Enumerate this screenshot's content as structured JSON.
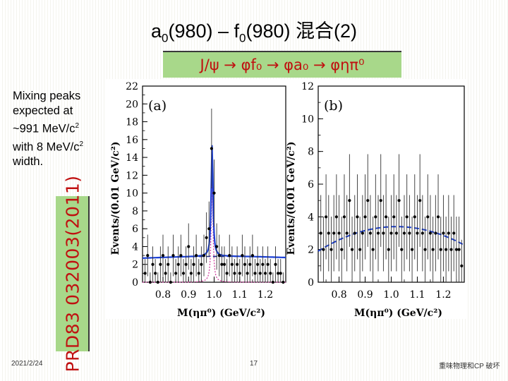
{
  "slide": {
    "title_main": "a",
    "title_sub1": "0",
    "title_mid": "(980) – f",
    "title_sub2": "0",
    "title_end": "(980) 混合(2)",
    "reaction": "J/ψ → φf₀ → φa₀ → φηπ⁰",
    "mixing_line1": "Mixing peaks",
    "mixing_line2": "expected at",
    "mixing_line3a": "~991 MeV/c",
    "mixing_line3b": "2",
    "mixing_line4a": "with 8 MeV/c",
    "mixing_line4b": "2",
    "mixing_line5": "width.",
    "reference": "PRD83 032003(2011)",
    "footer_date": "2021/2/24",
    "footer_page": "17",
    "footer_right": "重味物理和CP 破坏"
  },
  "chart_data": [
    {
      "type": "scatter",
      "panel_label": "(a)",
      "xlabel": "M(ηπ⁰) (GeV/c²)",
      "ylabel": "Events/(0.01 GeV/c²)",
      "xlim": [
        0.72,
        1.28
      ],
      "ylim": [
        0,
        22
      ],
      "xticks": [
        "0.8",
        "0.9",
        "1.0",
        "1.1",
        "1.2"
      ],
      "yticks": [
        "0",
        "2",
        "4",
        "6",
        "8",
        "10",
        "12",
        "14",
        "16",
        "18",
        "20",
        "22"
      ],
      "points": [
        [
          0.73,
          1
        ],
        [
          0.74,
          3
        ],
        [
          0.75,
          0
        ],
        [
          0.76,
          2
        ],
        [
          0.77,
          1
        ],
        [
          0.78,
          0
        ],
        [
          0.79,
          2
        ],
        [
          0.8,
          3
        ],
        [
          0.81,
          1
        ],
        [
          0.82,
          2
        ],
        [
          0.83,
          0
        ],
        [
          0.84,
          3
        ],
        [
          0.85,
          1
        ],
        [
          0.86,
          2
        ],
        [
          0.87,
          3
        ],
        [
          0.88,
          1
        ],
        [
          0.89,
          2
        ],
        [
          0.9,
          4
        ],
        [
          0.91,
          1
        ],
        [
          0.92,
          2
        ],
        [
          0.93,
          3
        ],
        [
          0.94,
          1
        ],
        [
          0.95,
          2
        ],
        [
          0.96,
          3
        ],
        [
          0.97,
          5
        ],
        [
          0.98,
          6
        ],
        [
          0.99,
          15
        ],
        [
          1.0,
          10
        ],
        [
          1.01,
          4
        ],
        [
          1.02,
          3
        ],
        [
          1.03,
          2
        ],
        [
          1.04,
          2
        ],
        [
          1.05,
          1
        ],
        [
          1.06,
          3
        ],
        [
          1.07,
          2
        ],
        [
          1.08,
          1
        ],
        [
          1.09,
          2
        ],
        [
          1.1,
          1
        ],
        [
          1.11,
          3
        ],
        [
          1.12,
          2
        ],
        [
          1.13,
          1
        ],
        [
          1.14,
          2
        ],
        [
          1.15,
          3
        ],
        [
          1.16,
          1
        ],
        [
          1.17,
          2
        ],
        [
          1.18,
          1
        ],
        [
          1.19,
          2
        ],
        [
          1.2,
          1
        ],
        [
          1.21,
          2
        ],
        [
          1.22,
          1
        ],
        [
          1.23,
          0
        ],
        [
          1.24,
          2
        ],
        [
          1.25,
          1
        ],
        [
          1.26,
          1
        ],
        [
          1.27,
          0
        ]
      ],
      "fit": {
        "peak_x": 0.992,
        "peak_y": 15.3,
        "width": 0.008,
        "background_level": 2.7
      },
      "colors": {
        "total": "#1a3fd6",
        "background": "#1a2a8a",
        "signal": "#d040a0",
        "points": "#000000"
      }
    },
    {
      "type": "scatter",
      "panel_label": "(b)",
      "xlabel": "M(ηπ⁰) (GeV/c²)",
      "ylabel": "Events/(0.01 GeV/c²)",
      "xlim": [
        0.72,
        1.28
      ],
      "ylim": [
        0,
        12
      ],
      "xticks": [
        "0.8",
        "0.9",
        "1.0",
        "1.1",
        "1.2"
      ],
      "yticks": [
        "0",
        "2",
        "4",
        "6",
        "8",
        "10",
        "12"
      ],
      "points": [
        [
          0.73,
          3
        ],
        [
          0.74,
          2
        ],
        [
          0.75,
          4
        ],
        [
          0.76,
          3
        ],
        [
          0.77,
          2
        ],
        [
          0.78,
          3
        ],
        [
          0.79,
          4
        ],
        [
          0.8,
          3
        ],
        [
          0.81,
          2
        ],
        [
          0.82,
          4
        ],
        [
          0.83,
          3
        ],
        [
          0.84,
          5
        ],
        [
          0.85,
          2
        ],
        [
          0.86,
          3
        ],
        [
          0.87,
          4
        ],
        [
          0.88,
          2
        ],
        [
          0.89,
          3
        ],
        [
          0.9,
          4
        ],
        [
          0.91,
          5
        ],
        [
          0.92,
          3
        ],
        [
          0.93,
          2
        ],
        [
          0.94,
          4
        ],
        [
          0.95,
          3
        ],
        [
          0.96,
          5
        ],
        [
          0.97,
          3
        ],
        [
          0.98,
          4
        ],
        [
          0.99,
          2
        ],
        [
          1.0,
          3
        ],
        [
          1.01,
          4
        ],
        [
          1.02,
          3
        ],
        [
          1.03,
          5
        ],
        [
          1.04,
          2
        ],
        [
          1.05,
          3
        ],
        [
          1.06,
          4
        ],
        [
          1.07,
          3
        ],
        [
          1.08,
          2
        ],
        [
          1.09,
          4
        ],
        [
          1.1,
          3
        ],
        [
          1.11,
          5
        ],
        [
          1.12,
          3
        ],
        [
          1.13,
          2
        ],
        [
          1.14,
          4
        ],
        [
          1.15,
          3
        ],
        [
          1.16,
          2
        ],
        [
          1.17,
          3
        ],
        [
          1.18,
          4
        ],
        [
          1.19,
          2
        ],
        [
          1.2,
          3
        ],
        [
          1.21,
          2
        ],
        [
          1.22,
          3
        ],
        [
          1.23,
          2
        ],
        [
          1.24,
          3
        ],
        [
          1.25,
          2
        ],
        [
          1.26,
          2
        ],
        [
          1.27,
          1
        ]
      ],
      "fit": {
        "center_x": 1.02,
        "peak_y": 3.4,
        "edge_y": 1.9
      },
      "colors": {
        "fit": "#1a3fd6",
        "points": "#000000"
      }
    }
  ]
}
